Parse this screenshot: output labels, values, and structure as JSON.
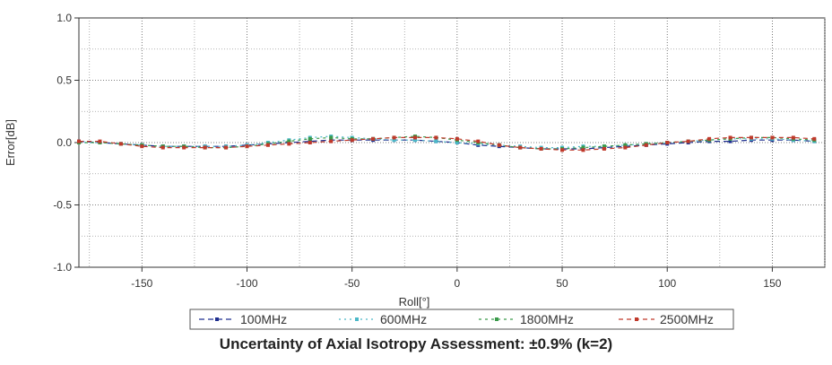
{
  "caption": "Uncertainty of Axial Isotropy Assessment: ±0.9% (k=2)",
  "chart_data": {
    "type": "line",
    "title": "",
    "xlabel": "Roll[°]",
    "ylabel": "Error[dB]",
    "xlim": [
      -180,
      175
    ],
    "ylim": [
      -1.0,
      1.0
    ],
    "xticks": [
      -150,
      -100,
      -50,
      0,
      50,
      100,
      150
    ],
    "yticks": [
      1.0,
      0.5,
      0.0,
      -0.5,
      -1.0
    ],
    "ytick_labels": [
      "1.0",
      "0.5",
      "0.0",
      "-0.5",
      "-1.0"
    ],
    "grid": true,
    "legend_position": "bottom",
    "x": [
      -180,
      -170,
      -160,
      -150,
      -140,
      -130,
      -120,
      -110,
      -100,
      -90,
      -80,
      -70,
      -60,
      -50,
      -40,
      -30,
      -20,
      -10,
      0,
      10,
      20,
      30,
      40,
      50,
      60,
      70,
      80,
      90,
      100,
      110,
      120,
      130,
      140,
      150,
      160,
      170
    ],
    "series": [
      {
        "name": "100MHz",
        "color": "#1f2f8f",
        "dash": "6,4",
        "values": [
          0.01,
          0.0,
          -0.01,
          -0.02,
          -0.03,
          -0.03,
          -0.03,
          -0.03,
          -0.02,
          -0.01,
          0.0,
          0.01,
          0.02,
          0.02,
          0.02,
          0.02,
          0.02,
          0.01,
          0.0,
          -0.02,
          -0.03,
          -0.04,
          -0.05,
          -0.05,
          -0.05,
          -0.04,
          -0.03,
          -0.02,
          -0.01,
          0.0,
          0.01,
          0.01,
          0.02,
          0.02,
          0.02,
          0.01
        ]
      },
      {
        "name": "600MHz",
        "color": "#4bb8c8",
        "dash": "2,4",
        "values": [
          0.0,
          0.0,
          -0.01,
          -0.02,
          -0.03,
          -0.03,
          -0.03,
          -0.03,
          -0.02,
          0.0,
          0.02,
          0.04,
          0.05,
          0.04,
          0.03,
          0.02,
          0.02,
          0.01,
          0.0,
          -0.01,
          -0.02,
          -0.03,
          -0.04,
          -0.04,
          -0.03,
          -0.03,
          -0.02,
          -0.01,
          0.0,
          0.01,
          0.02,
          0.03,
          0.03,
          0.03,
          0.02,
          0.01
        ]
      },
      {
        "name": "1800MHz",
        "color": "#3a9a4a",
        "dash": "3,4",
        "values": [
          0.0,
          0.0,
          -0.01,
          -0.02,
          -0.03,
          -0.03,
          -0.04,
          -0.04,
          -0.03,
          -0.01,
          0.01,
          0.03,
          0.04,
          0.03,
          0.03,
          0.04,
          0.05,
          0.04,
          0.02,
          0.0,
          -0.02,
          -0.04,
          -0.05,
          -0.05,
          -0.04,
          -0.03,
          -0.02,
          -0.01,
          0.0,
          0.01,
          0.02,
          0.03,
          0.04,
          0.04,
          0.03,
          0.02
        ]
      },
      {
        "name": "2500MHz",
        "color": "#c0392b",
        "dash": "5,4",
        "values": [
          0.01,
          0.01,
          -0.01,
          -0.03,
          -0.04,
          -0.04,
          -0.04,
          -0.04,
          -0.03,
          -0.02,
          -0.01,
          0.0,
          0.01,
          0.02,
          0.03,
          0.04,
          0.04,
          0.04,
          0.03,
          0.01,
          -0.02,
          -0.04,
          -0.05,
          -0.06,
          -0.06,
          -0.05,
          -0.04,
          -0.02,
          0.0,
          0.01,
          0.03,
          0.04,
          0.04,
          0.04,
          0.04,
          0.03
        ]
      }
    ]
  }
}
